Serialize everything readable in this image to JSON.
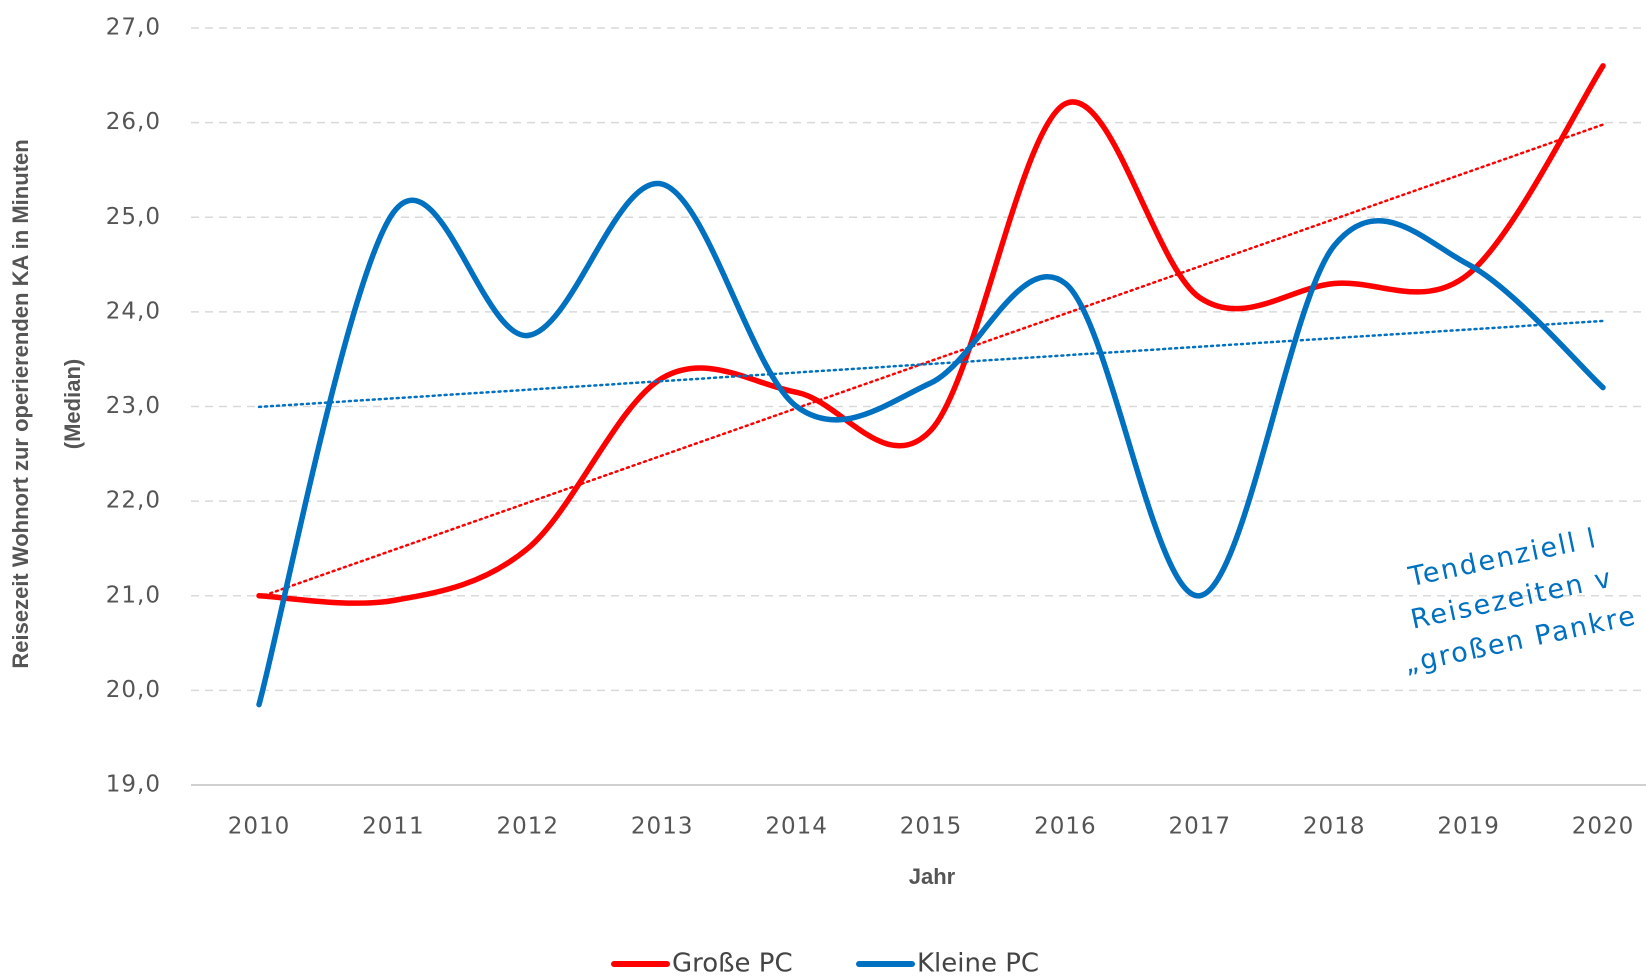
{
  "chart_data": {
    "type": "line",
    "x_label": "Jahr",
    "y_label": [
      "Reisezeit Wohnort zur operierenden KA in Minuten",
      "(Median)"
    ],
    "categories": [
      "2010",
      "2011",
      "2012",
      "2013",
      "2014",
      "2015",
      "2016",
      "2017",
      "2018",
      "2019",
      "2020"
    ],
    "series": [
      {
        "name": "Große PC",
        "color": "#ff0000",
        "values": [
          21.0,
          20.95,
          21.5,
          23.3,
          23.15,
          22.75,
          26.2,
          24.15,
          24.3,
          24.4,
          26.6
        ]
      },
      {
        "name": "Kleine PC",
        "color": "#0070c0",
        "values": [
          19.85,
          25.05,
          23.75,
          25.35,
          23.0,
          23.25,
          24.3,
          21.0,
          24.7,
          24.5,
          23.2
        ]
      }
    ],
    "ylim": [
      19,
      27
    ],
    "yticks": [
      {
        "value": 19,
        "label": "19,0"
      },
      {
        "value": 20,
        "label": "20,0"
      },
      {
        "value": 21,
        "label": "21,0"
      },
      {
        "value": 22,
        "label": "22,0"
      },
      {
        "value": 23,
        "label": "23,0"
      },
      {
        "value": 24,
        "label": "24,0"
      },
      {
        "value": 25,
        "label": "25,0"
      },
      {
        "value": 26,
        "label": "26,0"
      },
      {
        "value": 27,
        "label": "27,0"
      }
    ],
    "grid": true,
    "smooth": true,
    "trendline": true,
    "legend": "bottom",
    "annotation": [
      "Tendenziell l",
      "Reisezeiten v",
      "„großen Pankre"
    ]
  }
}
